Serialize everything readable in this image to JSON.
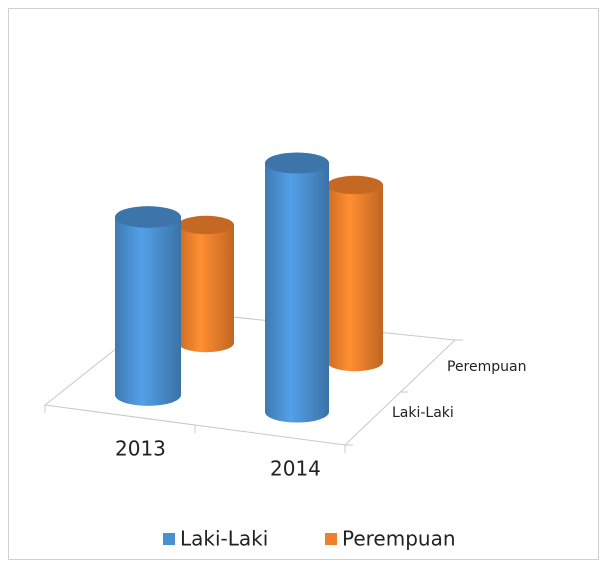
{
  "chart_data": {
    "type": "cylinder3d",
    "categories": [
      "2013",
      "2014"
    ],
    "series": [
      {
        "name": "Laki-Laki",
        "color": "#4a8fd0",
        "values": [
          178,
          249
        ]
      },
      {
        "name": "Perempuan",
        "color": "#f07f2c",
        "values": [
          118,
          177
        ]
      }
    ],
    "legend": "bottom"
  }
}
